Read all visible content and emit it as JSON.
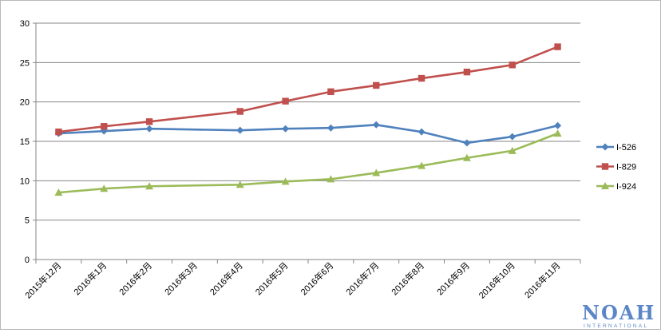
{
  "chart_data": {
    "type": "line",
    "categories": [
      "2015年12月",
      "2016年1月",
      "2016年2月",
      "2016年3月",
      "2016年4月",
      "2016年5月",
      "2016年6月",
      "2016年7月",
      "2016年8月",
      "2016年9月",
      "2016年10月",
      "2016年11月"
    ],
    "ylim": [
      0,
      30
    ],
    "yticks": [
      0,
      5,
      10,
      15,
      20,
      25,
      30
    ],
    "grid": true,
    "legend_position": "right",
    "series": [
      {
        "name": "I-526",
        "color": "#4f81bd",
        "marker": "diamond",
        "values": [
          16.0,
          16.3,
          16.6,
          null,
          16.4,
          16.6,
          16.7,
          17.1,
          16.2,
          14.8,
          15.6,
          17.0
        ]
      },
      {
        "name": "I-829",
        "color": "#c0504d",
        "marker": "square",
        "values": [
          16.2,
          16.9,
          17.5,
          null,
          18.8,
          20.1,
          21.3,
          22.1,
          23.0,
          23.8,
          24.7,
          27.0
        ]
      },
      {
        "name": "I-924",
        "color": "#9bbb59",
        "marker": "triangle",
        "values": [
          8.5,
          9.0,
          9.3,
          null,
          9.5,
          9.9,
          10.2,
          11.0,
          11.9,
          12.9,
          13.8,
          16.0
        ]
      }
    ]
  },
  "watermark": {
    "main": "NOAH",
    "sub": "INTERNATIONAL"
  }
}
